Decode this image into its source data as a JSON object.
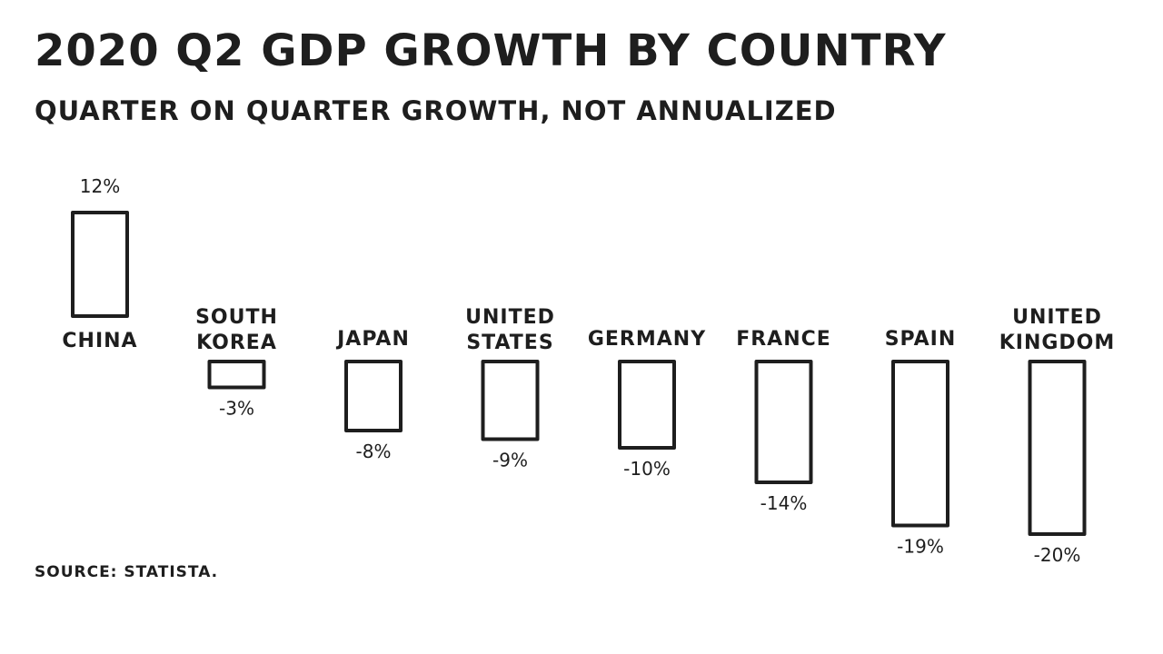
{
  "title": "2020 Q2 GDP GROWTH BY COUNTRY",
  "subtitle": "QUARTER ON QUARTER GROWTH, NOT ANNUALIZED",
  "source": "SOURCE: STATISTA.",
  "colors": {
    "ink": "#1e1e1e",
    "background": "#ffffff"
  },
  "chart_data": {
    "type": "bar",
    "title": "2020 Q2 GDP GROWTH BY COUNTRY",
    "subtitle": "QUARTER ON QUARTER GROWTH, NOT ANNUALIZED",
    "xlabel": "",
    "ylabel": "",
    "unit": "%",
    "categories": [
      [
        "CHINA"
      ],
      [
        "SOUTH",
        "KOREA"
      ],
      [
        "JAPAN"
      ],
      [
        "UNITED",
        "STATES"
      ],
      [
        "GERMANY"
      ],
      [
        "FRANCE"
      ],
      [
        "SPAIN"
      ],
      [
        "UNITED",
        "KINGDOM"
      ]
    ],
    "values": [
      12,
      -3,
      -8,
      -9,
      -10,
      -14,
      -19,
      -20
    ],
    "value_labels": [
      "12%",
      "-3%",
      "-8%",
      "-9%",
      "-10%",
      "-14%",
      "-19%",
      "-20%"
    ],
    "ylim": [
      -20,
      12
    ],
    "grid": false,
    "legend": "none"
  }
}
